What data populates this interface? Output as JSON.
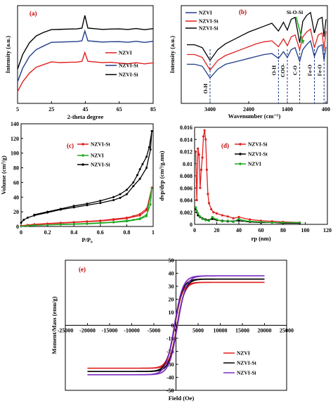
{
  "chart_data": [
    {
      "panel": "(a)",
      "type": "line",
      "xlabel": "2-theta degree",
      "ylabel": "Intensity (a.u.)",
      "xticks": [
        "5",
        "25",
        "45",
        "65",
        "85"
      ],
      "xlim": [
        5,
        85
      ],
      "ylim": [
        0,
        1
      ],
      "grid": false,
      "legend": "right",
      "series": [
        {
          "name": "NZVI",
          "color": "#e02020",
          "x": [
            5,
            8,
            12,
            16,
            20,
            25,
            30,
            35,
            40,
            43,
            44.7,
            46.5,
            50,
            55,
            60,
            65,
            70,
            75,
            80,
            85
          ],
          "y": [
            0.12,
            0.22,
            0.31,
            0.37,
            0.4,
            0.42,
            0.42,
            0.42,
            0.42,
            0.43,
            0.52,
            0.43,
            0.42,
            0.42,
            0.42,
            0.41,
            0.41,
            0.41,
            0.41,
            0.41
          ]
        },
        {
          "name": "NZVI-St",
          "color": "#1f3c88",
          "x": [
            5,
            8,
            12,
            16,
            20,
            25,
            30,
            35,
            40,
            43,
            44.7,
            46.5,
            50,
            55,
            60,
            65,
            70,
            75,
            80,
            85
          ],
          "y": [
            0.22,
            0.36,
            0.48,
            0.55,
            0.59,
            0.62,
            0.63,
            0.63,
            0.63,
            0.64,
            0.74,
            0.64,
            0.63,
            0.63,
            0.63,
            0.63,
            0.63,
            0.63,
            0.63,
            0.63
          ]
        },
        {
          "name": "NZVI-Si",
          "color": "#000000",
          "x": [
            5,
            8,
            12,
            16,
            20,
            25,
            30,
            35,
            40,
            43,
            44.7,
            46.5,
            50,
            55,
            60,
            65,
            70,
            75,
            80,
            85
          ],
          "y": [
            0.35,
            0.5,
            0.62,
            0.69,
            0.73,
            0.75,
            0.76,
            0.76,
            0.76,
            0.77,
            0.9,
            0.77,
            0.76,
            0.76,
            0.76,
            0.76,
            0.76,
            0.76,
            0.76,
            0.76
          ]
        }
      ]
    },
    {
      "panel": "(b)",
      "type": "line",
      "xlabel": "Wavenumber (cm⁻¹)",
      "ylabel": "Intensity (a.u.)",
      "xticks": [
        "3400",
        "2400",
        "1400",
        "400"
      ],
      "xlim": [
        4000,
        400
      ],
      "ylim": [
        0,
        1
      ],
      "grid": false,
      "legend": "top-left",
      "annotations": [
        {
          "text": "O-H",
          "x": 3400
        },
        {
          "text": "O-H",
          "x": 1630
        },
        {
          "text": "COO-",
          "x": 1400
        },
        {
          "text": "C-O",
          "x": 1080
        },
        {
          "text": "Fe-O",
          "x": 700
        },
        {
          "text": "Fe-O",
          "x": 450
        },
        {
          "text": "Si-O-Si",
          "x": 1100
        }
      ],
      "series": [
        {
          "name": "NZVI",
          "color": "#1f3c88",
          "x": [
            4000,
            3800,
            3600,
            3400,
            3200,
            3000,
            2800,
            2600,
            2400,
            2200,
            2000,
            1800,
            1630,
            1500,
            1400,
            1300,
            1200,
            1080,
            1000,
            900,
            800,
            700,
            600,
            500,
            450,
            400
          ],
          "y": [
            0.4,
            0.4,
            0.38,
            0.26,
            0.35,
            0.4,
            0.42,
            0.44,
            0.46,
            0.48,
            0.5,
            0.51,
            0.46,
            0.53,
            0.47,
            0.55,
            0.57,
            0.43,
            0.55,
            0.6,
            0.64,
            0.48,
            0.58,
            0.6,
            0.44,
            0.58
          ]
        },
        {
          "name": "NZVI-St",
          "color": "#e02020",
          "x": [
            4000,
            3800,
            3600,
            3400,
            3200,
            3000,
            2800,
            2600,
            2400,
            2200,
            2000,
            1800,
            1630,
            1500,
            1400,
            1300,
            1200,
            1080,
            1000,
            900,
            800,
            700,
            600,
            500,
            450,
            400
          ],
          "y": [
            0.5,
            0.5,
            0.47,
            0.34,
            0.44,
            0.49,
            0.52,
            0.55,
            0.58,
            0.61,
            0.63,
            0.64,
            0.58,
            0.66,
            0.59,
            0.68,
            0.7,
            0.55,
            0.68,
            0.73,
            0.76,
            0.57,
            0.7,
            0.72,
            0.55,
            0.74
          ]
        },
        {
          "name": "NZVI-Si",
          "color": "#000000",
          "x": [
            4000,
            3800,
            3600,
            3400,
            3200,
            3000,
            2800,
            2600,
            2400,
            2200,
            2000,
            1800,
            1630,
            1500,
            1400,
            1300,
            1200,
            1080,
            1000,
            900,
            800,
            700,
            600,
            500,
            450,
            400
          ],
          "y": [
            0.6,
            0.6,
            0.57,
            0.44,
            0.55,
            0.61,
            0.65,
            0.69,
            0.73,
            0.76,
            0.79,
            0.82,
            0.74,
            0.83,
            0.75,
            0.86,
            0.88,
            0.62,
            0.84,
            0.9,
            0.93,
            0.72,
            0.86,
            0.88,
            0.68,
            0.86
          ]
        }
      ]
    },
    {
      "panel": "(c)",
      "type": "line",
      "xlabel": "P/P₀",
      "ylabel": "Volume (cm³/g)",
      "xticks": [
        "0",
        "0.2",
        "0.4",
        "0.6",
        "0.8",
        "1"
      ],
      "yticks": [
        "0",
        "20",
        "40",
        "60",
        "80",
        "100",
        "120",
        "140"
      ],
      "xlim": [
        0,
        1
      ],
      "ylim": [
        0,
        140
      ],
      "grid": false,
      "legend": "top-left",
      "series": [
        {
          "name": "NZVI-St",
          "color": "#e02020",
          "x": [
            0.0,
            0.05,
            0.1,
            0.2,
            0.3,
            0.4,
            0.5,
            0.6,
            0.7,
            0.8,
            0.85,
            0.9,
            0.95,
            0.98,
            0.99,
            0.95,
            0.9,
            0.8,
            0.7,
            0.6,
            0.5,
            0.4,
            0.3,
            0.2,
            0.1,
            0.05
          ],
          "y": [
            1,
            2,
            3,
            4,
            5,
            6,
            7,
            8,
            10,
            12,
            14,
            17,
            24,
            40,
            53,
            22,
            15,
            11,
            9,
            7.5,
            6.5,
            5.5,
            4.5,
            3.5,
            2.5,
            2
          ]
        },
        {
          "name": "NZVI",
          "color": "#22a822",
          "x": [
            0.0,
            0.05,
            0.1,
            0.2,
            0.3,
            0.4,
            0.5,
            0.6,
            0.7,
            0.8,
            0.85,
            0.9,
            0.95,
            0.98,
            0.99,
            0.95,
            0.9,
            0.8,
            0.7,
            0.6,
            0.5,
            0.4,
            0.3,
            0.2,
            0.1,
            0.05
          ],
          "y": [
            0,
            1,
            1.5,
            2,
            3,
            3.5,
            4,
            5,
            6,
            8,
            9,
            11,
            16,
            30,
            52,
            14,
            10,
            7,
            5.5,
            4.5,
            3.5,
            3,
            2.5,
            2,
            1.5,
            1
          ]
        },
        {
          "name": "NZVI-Si",
          "color": "#000000",
          "x": [
            0.0,
            0.02,
            0.05,
            0.1,
            0.2,
            0.3,
            0.4,
            0.5,
            0.6,
            0.7,
            0.75,
            0.8,
            0.85,
            0.9,
            0.95,
            0.98,
            0.99,
            0.97,
            0.95,
            0.92,
            0.9,
            0.88,
            0.85,
            0.8,
            0.75,
            0.7,
            0.6,
            0.5,
            0.4,
            0.3,
            0.2,
            0.1
          ],
          "y": [
            5,
            9,
            12,
            15,
            19,
            23,
            26,
            29,
            32,
            36,
            39,
            44,
            55,
            65,
            80,
            105,
            130,
            108,
            95,
            85,
            78,
            70,
            60,
            50,
            44,
            40,
            35,
            31,
            28,
            24,
            20,
            16
          ]
        }
      ]
    },
    {
      "panel": "(d)",
      "type": "line",
      "xlabel": "rp (nm)",
      "ylabel": "dvp/drp (cm³/g.nm)",
      "xticks": [
        "0",
        "20",
        "40",
        "60",
        "80",
        "100",
        "120"
      ],
      "yticks": [
        "0",
        "0.002",
        "0.004",
        "0.006",
        "0.008",
        "0.01",
        "0.012",
        "0.014",
        "0.016"
      ],
      "xlim": [
        0,
        120
      ],
      "ylim": [
        0,
        0.016
      ],
      "grid": false,
      "legend": "top-left",
      "series": [
        {
          "name": "NZVI-Si",
          "color": "#e02020",
          "x": [
            1,
            2,
            3,
            4,
            5,
            6,
            7,
            8,
            9,
            10,
            11,
            12,
            13,
            15,
            17,
            20,
            25,
            30,
            35,
            40,
            50,
            60,
            70,
            80,
            95
          ],
          "y": [
            0.012,
            0.004,
            0.0125,
            0.0115,
            0.006,
            0.009,
            0.011,
            0.0145,
            0.0155,
            0.014,
            0.009,
            0.005,
            0.0035,
            0.0025,
            0.002,
            0.0018,
            0.0015,
            0.0013,
            0.001,
            0.0012,
            0.0008,
            0.0006,
            0.0005,
            0.0004,
            0.0003
          ]
        },
        {
          "name": "NZVI-St",
          "color": "#000000",
          "x": [
            1,
            2,
            3,
            5,
            7,
            10,
            13,
            16,
            20,
            25,
            30,
            40,
            50,
            60,
            70,
            80,
            95
          ],
          "y": [
            0.0025,
            0.002,
            0.0015,
            0.0012,
            0.001,
            0.0008,
            0.0007,
            0.0009,
            0.0007,
            0.0006,
            0.0005,
            0.0006,
            0.0004,
            0.0003,
            0.0003,
            0.0002,
            0.0002
          ]
        },
        {
          "name": "NZVI",
          "color": "#22a822",
          "x": [
            1,
            2,
            3,
            5,
            7,
            10,
            13,
            16,
            20,
            25,
            30,
            35,
            40,
            45,
            50,
            60,
            70,
            80,
            95
          ],
          "y": [
            0.0028,
            0.0022,
            0.0018,
            0.0013,
            0.0009,
            0.0007,
            0.0006,
            0.0012,
            0.0008,
            0.0005,
            0.0006,
            0.0004,
            0.0009,
            0.0006,
            0.0005,
            0.0004,
            0.0003,
            0.0003,
            0.0003
          ]
        }
      ]
    },
    {
      "panel": "(e)",
      "type": "line",
      "xlabel": "Field (Oe)",
      "ylabel": "Moment/Mass (emu/g)",
      "xticks": [
        "-25000",
        "-20000",
        "-15000",
        "-10000",
        "-5000",
        "0",
        "5000",
        "10000",
        "15000",
        "20000",
        "25000"
      ],
      "yticks": [
        "-50",
        "-40",
        "-30",
        "-20",
        "-10",
        "0",
        "10",
        "20",
        "30",
        "40",
        "50"
      ],
      "xlim": [
        -25000,
        25000
      ],
      "ylim": [
        -50,
        50
      ],
      "grid": false,
      "legend": "bottom-right",
      "series": [
        {
          "name": "NZVI",
          "color": "#e02020",
          "Ms": 33,
          "Hc": 250,
          "Ha": 1700
        },
        {
          "name": "NZVI-St",
          "color": "#000000",
          "Ms": 35.5,
          "Hc": 300,
          "Ha": 1800
        },
        {
          "name": "NZVI-Si",
          "color": "#7b2fbf",
          "Ms": 38,
          "Hc": 350,
          "Ha": 1900
        }
      ]
    }
  ]
}
